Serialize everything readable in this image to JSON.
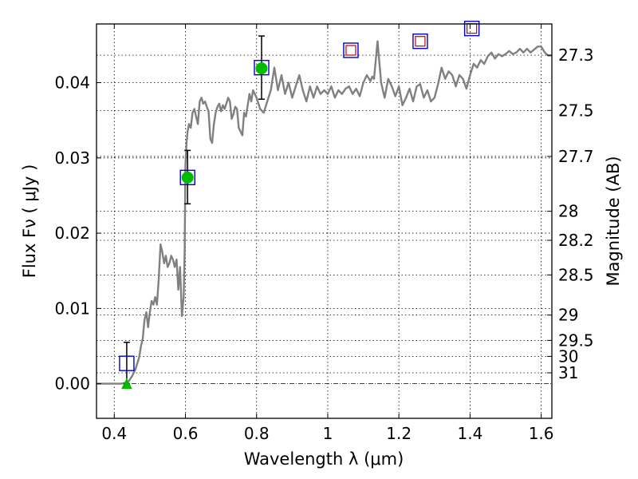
{
  "chart_data": {
    "type": "scatter",
    "xlabel": "Wavelength  λ (μm)",
    "ylabel": "Flux  Fν  ( μJy )",
    "y2label": "Magnitude (AB)",
    "xlim": [
      0.35,
      1.63
    ],
    "ylim": [
      -0.0046,
      0.0478
    ],
    "grid": true,
    "x_ticks": [
      0.4,
      0.6,
      0.8,
      1.0,
      1.2,
      1.4,
      1.6
    ],
    "x_tick_labels": [
      "0.4",
      "0.6",
      "0.8",
      "1",
      "1.2",
      "1.4",
      "1.6"
    ],
    "y_ticks": [
      0.0,
      0.01,
      0.02,
      0.03,
      0.04
    ],
    "y_tick_labels": [
      "0.00",
      "0.01",
      "0.02",
      "0.03",
      "0.04"
    ],
    "mag_ticks": [
      27.3,
      27.5,
      27.7,
      28,
      28.2,
      28.5,
      29,
      29.5,
      30,
      31
    ],
    "mag_tick_labels": [
      "27.3",
      "27.5",
      "27.7",
      "28",
      "28.2",
      "28.5",
      "29",
      "29.5",
      "30",
      "31"
    ],
    "colors": {
      "model": "#808080",
      "observed_marker": "#0000cc",
      "model_flux_marker": "#00bb00",
      "upper_limit_marker": "#cc0000",
      "error_bar": "#000000"
    },
    "model_spectrum": {
      "x": [
        0.35,
        0.42,
        0.43,
        0.44,
        0.45,
        0.46,
        0.47,
        0.475,
        0.48,
        0.485,
        0.49,
        0.495,
        0.5,
        0.505,
        0.51,
        0.515,
        0.52,
        0.525,
        0.53,
        0.535,
        0.54,
        0.545,
        0.55,
        0.555,
        0.56,
        0.565,
        0.57,
        0.575,
        0.58,
        0.585,
        0.59,
        0.595,
        0.598,
        0.6,
        0.603,
        0.606,
        0.61,
        0.615,
        0.62,
        0.625,
        0.63,
        0.635,
        0.64,
        0.645,
        0.65,
        0.655,
        0.66,
        0.665,
        0.67,
        0.675,
        0.68,
        0.685,
        0.69,
        0.695,
        0.7,
        0.705,
        0.71,
        0.715,
        0.72,
        0.725,
        0.73,
        0.735,
        0.74,
        0.745,
        0.75,
        0.76,
        0.765,
        0.77,
        0.775,
        0.78,
        0.785,
        0.79,
        0.8,
        0.81,
        0.82,
        0.83,
        0.84,
        0.85,
        0.86,
        0.87,
        0.88,
        0.89,
        0.9,
        0.91,
        0.92,
        0.93,
        0.94,
        0.95,
        0.96,
        0.97,
        0.98,
        0.99,
        1.0,
        1.01,
        1.02,
        1.03,
        1.04,
        1.05,
        1.06,
        1.07,
        1.08,
        1.09,
        1.1,
        1.11,
        1.12,
        1.125,
        1.13,
        1.14,
        1.15,
        1.16,
        1.17,
        1.18,
        1.19,
        1.2,
        1.21,
        1.22,
        1.23,
        1.24,
        1.25,
        1.26,
        1.27,
        1.28,
        1.29,
        1.3,
        1.31,
        1.32,
        1.33,
        1.34,
        1.35,
        1.36,
        1.37,
        1.38,
        1.39,
        1.4,
        1.41,
        1.42,
        1.43,
        1.44,
        1.45,
        1.46,
        1.47,
        1.48,
        1.49,
        1.5,
        1.51,
        1.52,
        1.53,
        1.54,
        1.55,
        1.56,
        1.57,
        1.58,
        1.59,
        1.6,
        1.61,
        1.62,
        1.63
      ],
      "y": [
        0.0,
        0.0,
        0.0001,
        0.0003,
        0.001,
        0.002,
        0.0035,
        0.005,
        0.006,
        0.0085,
        0.0095,
        0.0075,
        0.0095,
        0.011,
        0.0105,
        0.0115,
        0.0105,
        0.014,
        0.0185,
        0.0175,
        0.016,
        0.017,
        0.0155,
        0.016,
        0.017,
        0.0165,
        0.0155,
        0.0165,
        0.0125,
        0.0155,
        0.009,
        0.0115,
        0.018,
        0.029,
        0.032,
        0.0335,
        0.0345,
        0.034,
        0.036,
        0.0365,
        0.0355,
        0.0345,
        0.0375,
        0.038,
        0.0372,
        0.0375,
        0.0368,
        0.0362,
        0.0325,
        0.032,
        0.0345,
        0.036,
        0.0368,
        0.0372,
        0.0362,
        0.037,
        0.0365,
        0.0372,
        0.038,
        0.0375,
        0.0352,
        0.0358,
        0.0368,
        0.0365,
        0.034,
        0.033,
        0.036,
        0.0355,
        0.037,
        0.0385,
        0.0375,
        0.039,
        0.038,
        0.0365,
        0.036,
        0.0375,
        0.039,
        0.042,
        0.039,
        0.041,
        0.0385,
        0.04,
        0.038,
        0.0395,
        0.041,
        0.039,
        0.0375,
        0.0395,
        0.038,
        0.0395,
        0.0385,
        0.039,
        0.0385,
        0.0395,
        0.038,
        0.039,
        0.0385,
        0.0392,
        0.0395,
        0.0385,
        0.0392,
        0.0382,
        0.04,
        0.041,
        0.0402,
        0.0408,
        0.0405,
        0.0455,
        0.04,
        0.038,
        0.0405,
        0.0395,
        0.0382,
        0.0395,
        0.037,
        0.038,
        0.0392,
        0.0375,
        0.0395,
        0.0398,
        0.038,
        0.039,
        0.0375,
        0.038,
        0.0398,
        0.042,
        0.0405,
        0.0415,
        0.041,
        0.0395,
        0.041,
        0.0405,
        0.0392,
        0.041,
        0.0425,
        0.042,
        0.043,
        0.0425,
        0.0435,
        0.044,
        0.0432,
        0.0438,
        0.0435,
        0.0438,
        0.0442,
        0.0438,
        0.044,
        0.0445,
        0.044,
        0.0445,
        0.044,
        0.0444,
        0.0448,
        0.0448,
        0.044,
        0.0436,
        0.0436
      ]
    },
    "observed": [
      {
        "x": 0.435,
        "y": 0.0027
      },
      {
        "x": 0.606,
        "y": 0.0274
      },
      {
        "x": 0.814,
        "y": 0.042
      },
      {
        "x": 1.065,
        "y": 0.0443
      },
      {
        "x": 1.26,
        "y": 0.0455
      },
      {
        "x": 1.405,
        "y": 0.0472
      }
    ],
    "error_bars": [
      {
        "x": 0.435,
        "low": 0.0,
        "high": 0.0055
      },
      {
        "x": 0.606,
        "low": 0.0239,
        "high": 0.031
      },
      {
        "x": 0.814,
        "low": 0.0378,
        "high": 0.0462
      }
    ],
    "model_fluxes": [
      {
        "x": 0.606,
        "y": 0.0274
      },
      {
        "x": 0.814,
        "y": 0.0419
      }
    ],
    "upper_limits": [
      {
        "x": 1.065,
        "y": 0.0443
      },
      {
        "x": 1.26,
        "y": 0.0455
      },
      {
        "x": 1.405,
        "y": 0.0472
      }
    ],
    "non_detection": [
      {
        "x": 0.435,
        "y": 0.0
      }
    ]
  }
}
